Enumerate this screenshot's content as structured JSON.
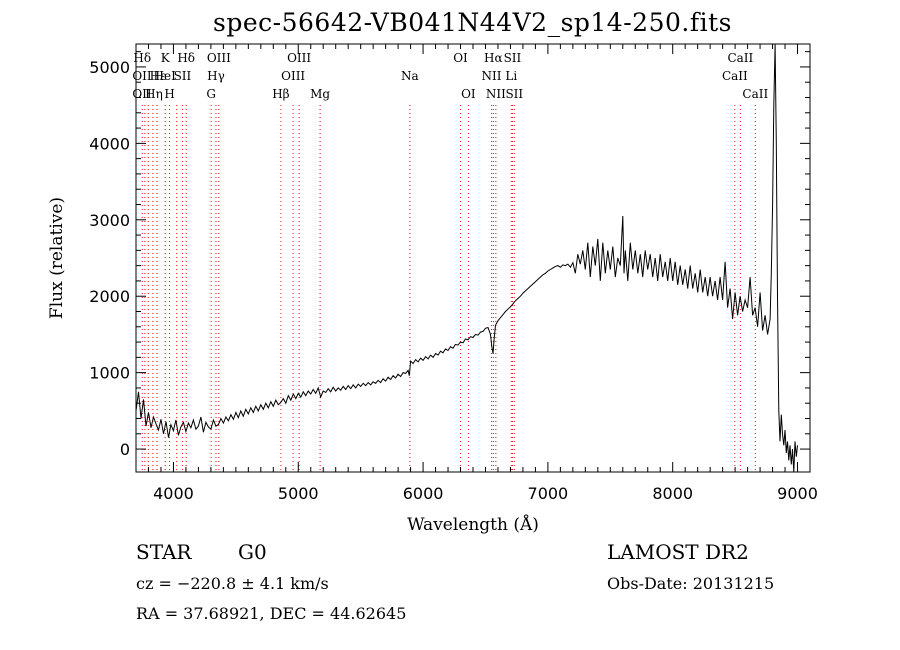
{
  "chart_data": {
    "type": "line",
    "title": "spec-56642-VB041N44V2_sp14-250.fits",
    "xlabel": "Wavelength (Å)",
    "ylabel": "Flux (relative)",
    "xlim": [
      3700,
      9100
    ],
    "ylim": [
      -300,
      5300
    ],
    "xticks": [
      4000,
      5000,
      6000,
      7000,
      8000,
      9000
    ],
    "yticks": [
      0,
      1000,
      2000,
      3000,
      4000,
      5000
    ],
    "grid": false,
    "line_color": "#000000",
    "marker_line_color": "#ff0000",
    "spectrum": [
      [
        3700,
        500
      ],
      [
        3720,
        750
      ],
      [
        3740,
        400
      ],
      [
        3760,
        650
      ],
      [
        3780,
        300
      ],
      [
        3800,
        480
      ],
      [
        3820,
        280
      ],
      [
        3840,
        420
      ],
      [
        3860,
        330
      ],
      [
        3880,
        250
      ],
      [
        3900,
        390
      ],
      [
        3920,
        200
      ],
      [
        3940,
        360
      ],
      [
        3960,
        150
      ],
      [
        3980,
        320
      ],
      [
        4000,
        240
      ],
      [
        4020,
        380
      ],
      [
        4040,
        180
      ],
      [
        4060,
        290
      ],
      [
        4080,
        350
      ],
      [
        4100,
        230
      ],
      [
        4120,
        340
      ],
      [
        4140,
        280
      ],
      [
        4160,
        380
      ],
      [
        4180,
        260
      ],
      [
        4200,
        300
      ],
      [
        4220,
        420
      ],
      [
        4240,
        220
      ],
      [
        4260,
        350
      ],
      [
        4280,
        290
      ],
      [
        4300,
        260
      ],
      [
        4320,
        380
      ],
      [
        4340,
        300
      ],
      [
        4360,
        320
      ],
      [
        4380,
        400
      ],
      [
        4400,
        340
      ],
      [
        4420,
        420
      ],
      [
        4440,
        370
      ],
      [
        4460,
        450
      ],
      [
        4480,
        390
      ],
      [
        4500,
        480
      ],
      [
        4520,
        410
      ],
      [
        4540,
        500
      ],
      [
        4560,
        430
      ],
      [
        4580,
        520
      ],
      [
        4600,
        460
      ],
      [
        4620,
        540
      ],
      [
        4640,
        480
      ],
      [
        4660,
        560
      ],
      [
        4680,
        500
      ],
      [
        4700,
        580
      ],
      [
        4720,
        520
      ],
      [
        4740,
        600
      ],
      [
        4760,
        540
      ],
      [
        4780,
        620
      ],
      [
        4800,
        560
      ],
      [
        4820,
        640
      ],
      [
        4840,
        580
      ],
      [
        4860,
        610
      ],
      [
        4880,
        660
      ],
      [
        4900,
        600
      ],
      [
        4920,
        700
      ],
      [
        4940,
        640
      ],
      [
        4960,
        720
      ],
      [
        4980,
        660
      ],
      [
        5000,
        730
      ],
      [
        5020,
        680
      ],
      [
        5040,
        750
      ],
      [
        5060,
        700
      ],
      [
        5080,
        760
      ],
      [
        5100,
        720
      ],
      [
        5120,
        780
      ],
      [
        5140,
        730
      ],
      [
        5160,
        800
      ],
      [
        5180,
        680
      ],
      [
        5200,
        760
      ],
      [
        5220,
        740
      ],
      [
        5240,
        790
      ],
      [
        5260,
        750
      ],
      [
        5280,
        810
      ],
      [
        5300,
        760
      ],
      [
        5320,
        800
      ],
      [
        5340,
        770
      ],
      [
        5360,
        820
      ],
      [
        5380,
        780
      ],
      [
        5400,
        830
      ],
      [
        5420,
        790
      ],
      [
        5440,
        840
      ],
      [
        5460,
        800
      ],
      [
        5480,
        850
      ],
      [
        5500,
        820
      ],
      [
        5520,
        860
      ],
      [
        5540,
        830
      ],
      [
        5560,
        870
      ],
      [
        5580,
        840
      ],
      [
        5600,
        880
      ],
      [
        5620,
        860
      ],
      [
        5640,
        900
      ],
      [
        5660,
        870
      ],
      [
        5680,
        920
      ],
      [
        5700,
        890
      ],
      [
        5720,
        940
      ],
      [
        5740,
        910
      ],
      [
        5760,
        960
      ],
      [
        5780,
        930
      ],
      [
        5800,
        980
      ],
      [
        5820,
        950
      ],
      [
        5840,
        1000
      ],
      [
        5860,
        990
      ],
      [
        5880,
        1030
      ],
      [
        5890,
        960
      ],
      [
        5900,
        1150
      ],
      [
        5920,
        1120
      ],
      [
        5940,
        1170
      ],
      [
        5960,
        1140
      ],
      [
        5980,
        1190
      ],
      [
        6000,
        1160
      ],
      [
        6020,
        1210
      ],
      [
        6040,
        1180
      ],
      [
        6060,
        1230
      ],
      [
        6080,
        1200
      ],
      [
        6100,
        1250
      ],
      [
        6120,
        1230
      ],
      [
        6140,
        1280
      ],
      [
        6160,
        1260
      ],
      [
        6180,
        1310
      ],
      [
        6200,
        1290
      ],
      [
        6220,
        1340
      ],
      [
        6240,
        1320
      ],
      [
        6260,
        1370
      ],
      [
        6280,
        1360
      ],
      [
        6300,
        1400
      ],
      [
        6320,
        1390
      ],
      [
        6340,
        1440
      ],
      [
        6360,
        1430
      ],
      [
        6380,
        1470
      ],
      [
        6400,
        1460
      ],
      [
        6420,
        1500
      ],
      [
        6440,
        1490
      ],
      [
        6460,
        1530
      ],
      [
        6480,
        1540
      ],
      [
        6500,
        1580
      ],
      [
        6520,
        1590
      ],
      [
        6540,
        1500
      ],
      [
        6550,
        1350
      ],
      [
        6560,
        1250
      ],
      [
        6570,
        1450
      ],
      [
        6580,
        1620
      ],
      [
        6600,
        1680
      ],
      [
        6620,
        1720
      ],
      [
        6640,
        1760
      ],
      [
        6660,
        1800
      ],
      [
        6680,
        1830
      ],
      [
        6700,
        1860
      ],
      [
        6720,
        1900
      ],
      [
        6740,
        1940
      ],
      [
        6760,
        1970
      ],
      [
        6780,
        2000
      ],
      [
        6800,
        2040
      ],
      [
        6820,
        2070
      ],
      [
        6840,
        2100
      ],
      [
        6860,
        2130
      ],
      [
        6880,
        2160
      ],
      [
        6900,
        2190
      ],
      [
        6920,
        2220
      ],
      [
        6940,
        2250
      ],
      [
        6960,
        2280
      ],
      [
        6980,
        2300
      ],
      [
        7000,
        2330
      ],
      [
        7020,
        2350
      ],
      [
        7040,
        2370
      ],
      [
        7060,
        2390
      ],
      [
        7080,
        2400
      ],
      [
        7100,
        2380
      ],
      [
        7120,
        2410
      ],
      [
        7140,
        2400
      ],
      [
        7160,
        2420
      ],
      [
        7180,
        2380
      ],
      [
        7200,
        2440
      ],
      [
        7220,
        2300
      ],
      [
        7240,
        2550
      ],
      [
        7260,
        2420
      ],
      [
        7280,
        2600
      ],
      [
        7300,
        2350
      ],
      [
        7320,
        2700
      ],
      [
        7340,
        2250
      ],
      [
        7360,
        2650
      ],
      [
        7380,
        2400
      ],
      [
        7400,
        2750
      ],
      [
        7420,
        2200
      ],
      [
        7440,
        2700
      ],
      [
        7460,
        2300
      ],
      [
        7480,
        2600
      ],
      [
        7500,
        2350
      ],
      [
        7520,
        2650
      ],
      [
        7540,
        2250
      ],
      [
        7560,
        2500
      ],
      [
        7580,
        2400
      ],
      [
        7600,
        3050
      ],
      [
        7610,
        2300
      ],
      [
        7620,
        2600
      ],
      [
        7640,
        2200
      ],
      [
        7660,
        2700
      ],
      [
        7680,
        2350
      ],
      [
        7700,
        2600
      ],
      [
        7720,
        2300
      ],
      [
        7740,
        2550
      ],
      [
        7760,
        2250
      ],
      [
        7780,
        2600
      ],
      [
        7800,
        2350
      ],
      [
        7820,
        2550
      ],
      [
        7840,
        2250
      ],
      [
        7860,
        2500
      ],
      [
        7880,
        2200
      ],
      [
        7900,
        2550
      ],
      [
        7920,
        2250
      ],
      [
        7940,
        2450
      ],
      [
        7960,
        2200
      ],
      [
        7980,
        2500
      ],
      [
        8000,
        2200
      ],
      [
        8020,
        2450
      ],
      [
        8040,
        2150
      ],
      [
        8060,
        2400
      ],
      [
        8080,
        2150
      ],
      [
        8100,
        2350
      ],
      [
        8120,
        2100
      ],
      [
        8140,
        2400
      ],
      [
        8160,
        2100
      ],
      [
        8180,
        2300
      ],
      [
        8200,
        2050
      ],
      [
        8220,
        2350
      ],
      [
        8240,
        2050
      ],
      [
        8260,
        2250
      ],
      [
        8280,
        2000
      ],
      [
        8300,
        2250
      ],
      [
        8320,
        2000
      ],
      [
        8340,
        2200
      ],
      [
        8360,
        1950
      ],
      [
        8380,
        2250
      ],
      [
        8400,
        1950
      ],
      [
        8420,
        2450
      ],
      [
        8440,
        1850
      ],
      [
        8460,
        2100
      ],
      [
        8480,
        1700
      ],
      [
        8500,
        2050
      ],
      [
        8520,
        1750
      ],
      [
        8540,
        2000
      ],
      [
        8560,
        1800
      ],
      [
        8580,
        1950
      ],
      [
        8600,
        1850
      ],
      [
        8620,
        2250
      ],
      [
        8640,
        1750
      ],
      [
        8660,
        1850
      ],
      [
        8680,
        1600
      ],
      [
        8700,
        2050
      ],
      [
        8720,
        1550
      ],
      [
        8740,
        1750
      ],
      [
        8760,
        1500
      ],
      [
        8780,
        1700
      ],
      [
        8790,
        2300
      ],
      [
        8800,
        3200
      ],
      [
        8810,
        4500
      ],
      [
        8820,
        5300
      ],
      [
        8830,
        4000
      ],
      [
        8840,
        2000
      ],
      [
        8850,
        500
      ],
      [
        8860,
        100
      ],
      [
        8870,
        450
      ],
      [
        8880,
        200
      ],
      [
        8890,
        50
      ],
      [
        8900,
        250
      ],
      [
        8910,
        -50
      ],
      [
        8920,
        100
      ],
      [
        8930,
        -150
      ],
      [
        8940,
        50
      ],
      [
        8950,
        -200
      ],
      [
        8960,
        0
      ],
      [
        8970,
        -300
      ],
      [
        8980,
        100
      ],
      [
        8990,
        -100
      ],
      [
        9000,
        50
      ]
    ],
    "line_markers": [
      {
        "wavelength": 3750,
        "label": "Hδ",
        "row": 0,
        "dx": 0
      },
      {
        "wavelength": 3771,
        "label": "",
        "row": 0,
        "dx": 0
      },
      {
        "wavelength": 3798,
        "label": "",
        "row": 0,
        "dx": 0
      },
      {
        "wavelength": 3835,
        "label": "",
        "row": 0,
        "dx": 0
      },
      {
        "wavelength": 3869,
        "label": "",
        "row": 0,
        "dx": 0
      },
      {
        "wavelength": 3934,
        "label": "K",
        "row": 0,
        "dx": 0
      },
      {
        "wavelength": 3969,
        "label": "H",
        "row": 2,
        "dx": 0
      },
      {
        "wavelength": 4026,
        "label": "HeI",
        "row": 1,
        "dx": -12
      },
      {
        "wavelength": 4072,
        "label": "SII",
        "row": 1,
        "dx": 0
      },
      {
        "wavelength": 4102,
        "label": "Hδ",
        "row": 0,
        "dx": 0
      },
      {
        "wavelength": 4302,
        "label": "G",
        "row": 2,
        "dx": 0
      },
      {
        "wavelength": 4341,
        "label": "Hγ",
        "row": 1,
        "dx": 0
      },
      {
        "wavelength": 4364,
        "label": "OIII",
        "row": 0,
        "dx": 0
      },
      {
        "wavelength": 4861,
        "label": "Hβ",
        "row": 2,
        "dx": 0
      },
      {
        "wavelength": 4959,
        "label": "OIII",
        "row": 1,
        "dx": 0
      },
      {
        "wavelength": 5007,
        "label": "OIII",
        "row": 0,
        "dx": 0
      },
      {
        "wavelength": 5175,
        "label": "Mg",
        "row": 2,
        "dx": 0
      },
      {
        "wavelength": 5894,
        "label": "Na",
        "row": 1,
        "dx": 0
      },
      {
        "wavelength": 6300,
        "label": "OI",
        "row": 0,
        "dx": 0
      },
      {
        "wavelength": 6363,
        "label": "OI",
        "row": 2,
        "dx": 0
      },
      {
        "wavelength": 6548,
        "label": "NII",
        "row": 1,
        "dx": 0
      },
      {
        "wavelength": 6563,
        "label": "Hα",
        "row": 0,
        "dx": 0
      },
      {
        "wavelength": 6583,
        "label": "NII",
        "row": 2,
        "dx": 0
      },
      {
        "wavelength": 6707,
        "label": "Li",
        "row": 1,
        "dx": 0
      },
      {
        "wavelength": 6716,
        "label": "SII",
        "row": 0,
        "dx": 0
      },
      {
        "wavelength": 6731,
        "label": "SII",
        "row": 2,
        "dx": 0
      },
      {
        "wavelength": 8498,
        "label": "CaII",
        "row": 1,
        "dx": 0
      },
      {
        "wavelength": 8542,
        "label": "CaII",
        "row": 0,
        "dx": 0
      },
      {
        "wavelength": 8662,
        "label": "CaII",
        "row": 2,
        "dx": 0
      }
    ],
    "left_edge_labels": [
      {
        "text": "OII",
        "row": 1
      },
      {
        "text": "OII",
        "row": 2
      },
      {
        "text": "Hε",
        "row": 1
      },
      {
        "text": "Hη",
        "row": 2
      }
    ]
  },
  "info": {
    "object_class": "STAR",
    "object_subclass": "G0",
    "survey": "LAMOST DR2",
    "redshift_text": "cz = −220.8 ± 4.1 km/s",
    "obs_date_text": "Obs-Date: 20131215",
    "radec_text": "RA =  37.68921, DEC =  44.62645"
  }
}
